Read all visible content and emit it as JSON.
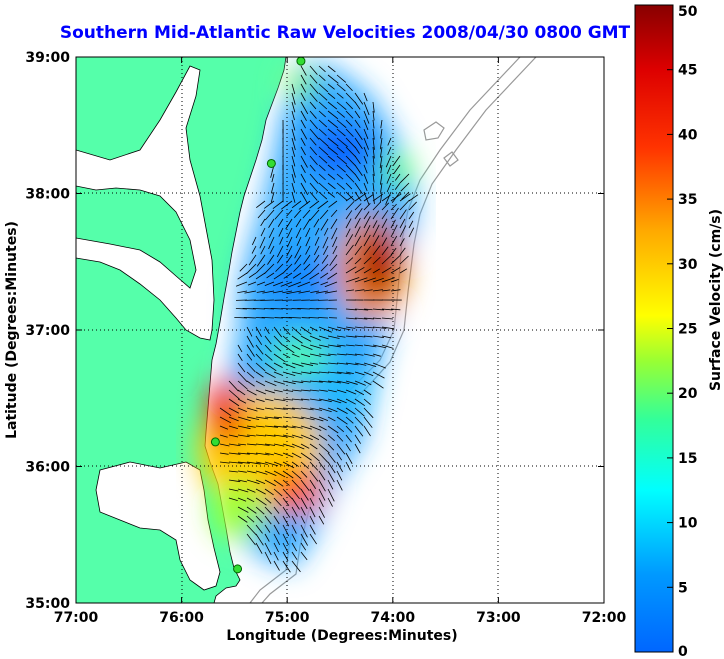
{
  "chart_data": {
    "type": "heatmap",
    "title": "Southern Mid-Atlantic Raw Velocities 2008/04/30 0800 GMT",
    "xlabel": "Longitude (Degrees:Minutes)",
    "ylabel": "Latitude (Degrees:Minutes)",
    "x_ticks": [
      {
        "value": -77,
        "label": "77:00"
      },
      {
        "value": -76,
        "label": "76:00"
      },
      {
        "value": -75,
        "label": "75:00"
      },
      {
        "value": -74,
        "label": "74:00"
      },
      {
        "value": -73,
        "label": "73:00"
      },
      {
        "value": -72,
        "label": "72:00"
      }
    ],
    "y_ticks": [
      {
        "value": 35,
        "label": "35:00"
      },
      {
        "value": 36,
        "label": "36:00"
      },
      {
        "value": 37,
        "label": "37:00"
      },
      {
        "value": 38,
        "label": "38:00"
      },
      {
        "value": 39,
        "label": "39:00"
      }
    ],
    "xlim": [
      -77,
      -72
    ],
    "ylim": [
      35,
      39
    ],
    "grid": true,
    "colorbar": {
      "label": "Surface Velocity (cm/s)",
      "min": 0,
      "max": 50,
      "ticks": [
        0,
        5,
        10,
        15,
        20,
        25,
        30,
        35,
        40,
        45,
        50
      ],
      "colormap": "jet"
    },
    "colors": {
      "title": "#0000ff",
      "land": "#55ffaa",
      "water": "#ffffff",
      "station": "#33dd33",
      "bathymetry": "#999999"
    },
    "stations": [
      {
        "lon": -74.87,
        "lat": 38.97
      },
      {
        "lon": -75.15,
        "lat": 38.22
      },
      {
        "lon": -75.68,
        "lat": 36.18
      },
      {
        "lon": -75.47,
        "lat": 35.25
      }
    ],
    "velocity_field_samples": [
      {
        "lon": -74.6,
        "lat": 38.35,
        "speed": 3
      },
      {
        "lon": -74.3,
        "lat": 38.0,
        "speed": 8
      },
      {
        "lon": -74.9,
        "lat": 37.9,
        "speed": 10
      },
      {
        "lon": -75.0,
        "lat": 37.3,
        "speed": 8
      },
      {
        "lon": -74.2,
        "lat": 37.3,
        "speed": 45
      },
      {
        "lon": -74.1,
        "lat": 37.6,
        "speed": 40
      },
      {
        "lon": -74.5,
        "lat": 36.9,
        "speed": 13
      },
      {
        "lon": -74.4,
        "lat": 36.6,
        "speed": 10
      },
      {
        "lon": -75.5,
        "lat": 36.5,
        "speed": 42
      },
      {
        "lon": -75.2,
        "lat": 36.2,
        "speed": 30
      },
      {
        "lon": -75.0,
        "lat": 35.8,
        "speed": 38
      },
      {
        "lon": -75.3,
        "lat": 35.7,
        "speed": 22
      },
      {
        "lon": -74.7,
        "lat": 36.4,
        "speed": 18
      },
      {
        "lon": -75.4,
        "lat": 37.0,
        "speed": 14
      }
    ]
  }
}
